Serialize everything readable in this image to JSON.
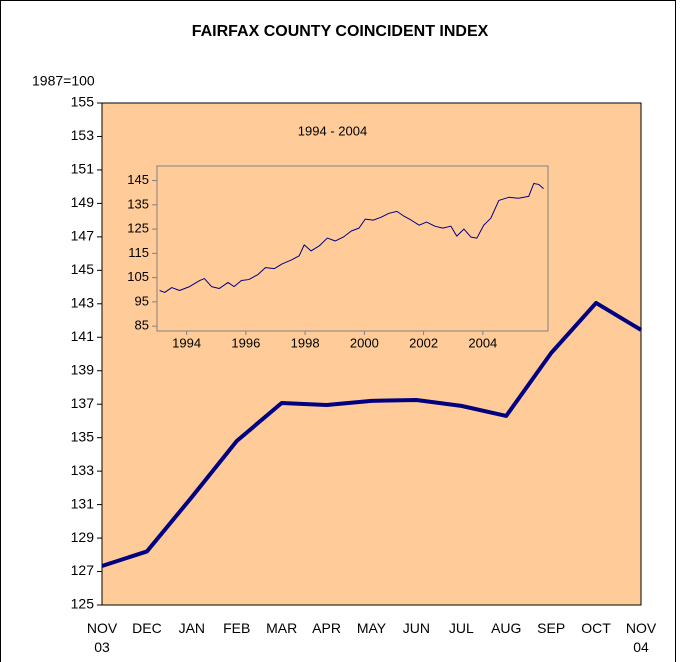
{
  "chart_data": [
    {
      "type": "line",
      "title": "FAIRFAX COUNTY COINCIDENT INDEX",
      "y_label": "1987=100",
      "categories": [
        "NOV\n03",
        "DEC",
        "JAN",
        "FEB",
        "MAR",
        "APR",
        "MAY",
        "JUN",
        "JUL",
        "AUG",
        "SEP",
        "OCT",
        "NOV\n04"
      ],
      "values": [
        127.33,
        128.2,
        131.45,
        134.8,
        137.07,
        136.95,
        137.2,
        137.25,
        136.9,
        136.3,
        140.06,
        143.05,
        141.44
      ],
      "color": "#000080",
      "ylim": [
        125,
        155
      ],
      "yticks": [
        125,
        127,
        129,
        131,
        133,
        135,
        137,
        139,
        141,
        143,
        145,
        147,
        149,
        151,
        153,
        155
      ]
    },
    {
      "type": "line",
      "title": "1994 - 2004",
      "x": [
        1993.09,
        1993.26,
        1993.5,
        1993.76,
        1994.1,
        1994.44,
        1994.6,
        1994.84,
        1995.1,
        1995.4,
        1995.6,
        1995.85,
        1996.1,
        1996.4,
        1996.66,
        1996.96,
        1997.23,
        1997.54,
        1997.8,
        1997.97,
        1998.2,
        1998.48,
        1998.75,
        1999.02,
        1999.29,
        1999.56,
        1999.82,
        2000.03,
        2000.3,
        2000.57,
        2000.83,
        2001.1,
        2001.34,
        2001.58,
        2001.85,
        2002.1,
        2002.38,
        2002.65,
        2002.92,
        2003.12,
        2003.36,
        2003.6,
        2003.8,
        2004.03,
        2004.27,
        2004.54,
        2004.88,
        2005.2,
        2005.55,
        2005.72,
        2005.89,
        2006.05
      ],
      "values": [
        99.7,
        98.9,
        100.9,
        99.7,
        101.3,
        103.8,
        104.6,
        101.3,
        100.5,
        103,
        101.3,
        103.8,
        104.2,
        106.2,
        109.1,
        108.7,
        110.7,
        112.3,
        114,
        118.5,
        116,
        118.1,
        121.3,
        120.1,
        121.7,
        124.2,
        125.4,
        129.1,
        128.7,
        129.9,
        131.5,
        132.3,
        130.3,
        128.7,
        126.6,
        127.9,
        126.2,
        125.4,
        126.2,
        122.1,
        125,
        121.7,
        121.3,
        126.6,
        129.5,
        136.8,
        138.1,
        137.7,
        138.5,
        143.8,
        143.4,
        141.7
      ],
      "color": "#000080",
      "xlim": [
        1993,
        2006.2
      ],
      "xticks": [
        1994,
        1996,
        1998,
        2000,
        2002,
        2004
      ],
      "ylim": [
        83,
        151
      ],
      "yticks": [
        85,
        95,
        105,
        115,
        125,
        135,
        145
      ]
    }
  ]
}
